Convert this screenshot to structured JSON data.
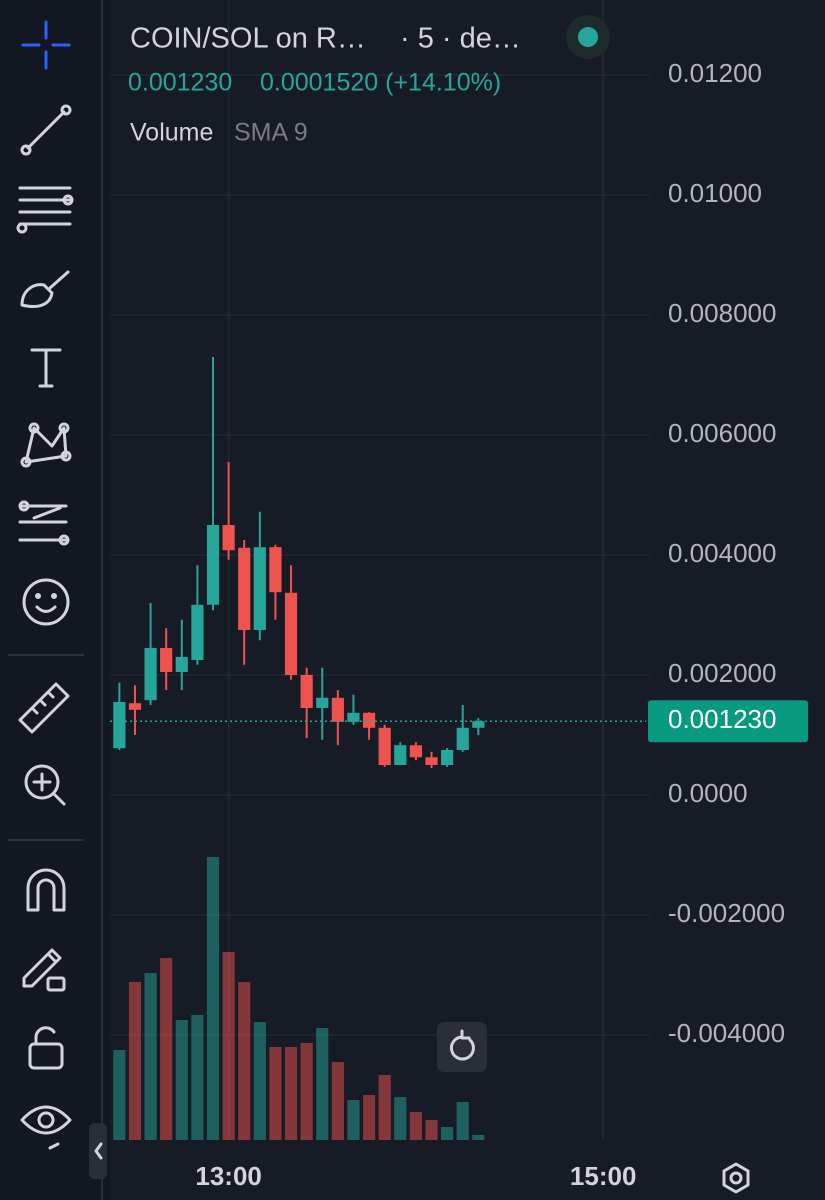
{
  "chart_data": {
    "type": "candlestick",
    "title": "COIN/SOL on R…",
    "interval": "· 5 · de…",
    "last_price": {
      "value": 0.00123,
      "label": "0.001230"
    },
    "change": "0.0001520 (+14.10%)",
    "volume_label": "Volume",
    "volume_study": "SMA 9",
    "x": [
      745,
      750,
      755,
      760,
      765,
      770,
      775,
      780,
      785,
      790,
      795,
      800,
      805,
      810,
      815,
      820,
      825,
      830,
      835,
      840,
      845,
      850,
      855,
      860
    ],
    "open": [
      0.00078,
      0.00153,
      0.00158,
      0.00245,
      0.00205,
      0.00225,
      0.00317,
      0.0045,
      0.00412,
      0.00275,
      0.00413,
      0.00337,
      0.002,
      0.00145,
      0.00162,
      0.00122,
      0.00137,
      0.00112,
      0.0005,
      0.00083,
      0.00063,
      0.0005,
      0.00075,
      0.00112
    ],
    "high": [
      0.00187,
      0.00183,
      0.0032,
      0.00278,
      0.00292,
      0.00383,
      0.0073,
      0.00555,
      0.00425,
      0.00472,
      0.00417,
      0.00383,
      0.00212,
      0.00212,
      0.00175,
      0.00167,
      0.00138,
      0.00117,
      0.00088,
      0.00088,
      0.00072,
      0.00078,
      0.0015,
      0.00128
    ],
    "low": [
      0.00075,
      0.001,
      0.0015,
      0.00175,
      0.00175,
      0.00217,
      0.00308,
      0.00392,
      0.00217,
      0.00258,
      0.00292,
      0.00192,
      0.00095,
      0.00092,
      0.00083,
      0.00117,
      0.00092,
      0.00047,
      0.0005,
      0.00058,
      0.00045,
      0.00047,
      0.00072,
      0.001
    ],
    "close": [
      0.00155,
      0.00142,
      0.00245,
      0.00205,
      0.0023,
      0.00317,
      0.0045,
      0.00408,
      0.00275,
      0.00413,
      0.00338,
      0.002,
      0.00145,
      0.00162,
      0.00122,
      0.00137,
      0.00112,
      0.0005,
      0.00083,
      0.00063,
      0.0005,
      0.00075,
      0.00112,
      0.00123
    ],
    "volume": [
      90,
      158,
      167,
      182,
      120,
      125,
      283,
      188,
      158,
      118,
      93,
      93,
      97,
      112,
      78,
      40,
      45,
      65,
      43,
      28,
      20,
      13,
      38,
      5
    ],
    "vlim": [
      0,
      300
    ],
    "up_color": "#26a69a",
    "down_color": "#ef5350",
    "ylim": [
      -0.00575,
      0.01325
    ],
    "yticks": [
      {
        "value": 0.012,
        "label": "0.01200"
      },
      {
        "value": 0.01,
        "label": "0.01000"
      },
      {
        "value": 0.008,
        "label": "0.008000"
      },
      {
        "value": 0.006,
        "label": "0.006000"
      },
      {
        "value": 0.004,
        "label": "0.004000"
      },
      {
        "value": 0.002,
        "label": "0.002000"
      },
      {
        "value": 0,
        "label": "0.0000"
      },
      {
        "value": -0.002,
        "label": "-0.002000"
      },
      {
        "value": -0.004,
        "label": "-0.004000"
      }
    ],
    "xlim": [
      742,
      915
    ],
    "xticks": [
      {
        "value": 780,
        "label": "13:00"
      },
      {
        "value": 900,
        "label": "15:00"
      }
    ],
    "grid": true
  }
}
